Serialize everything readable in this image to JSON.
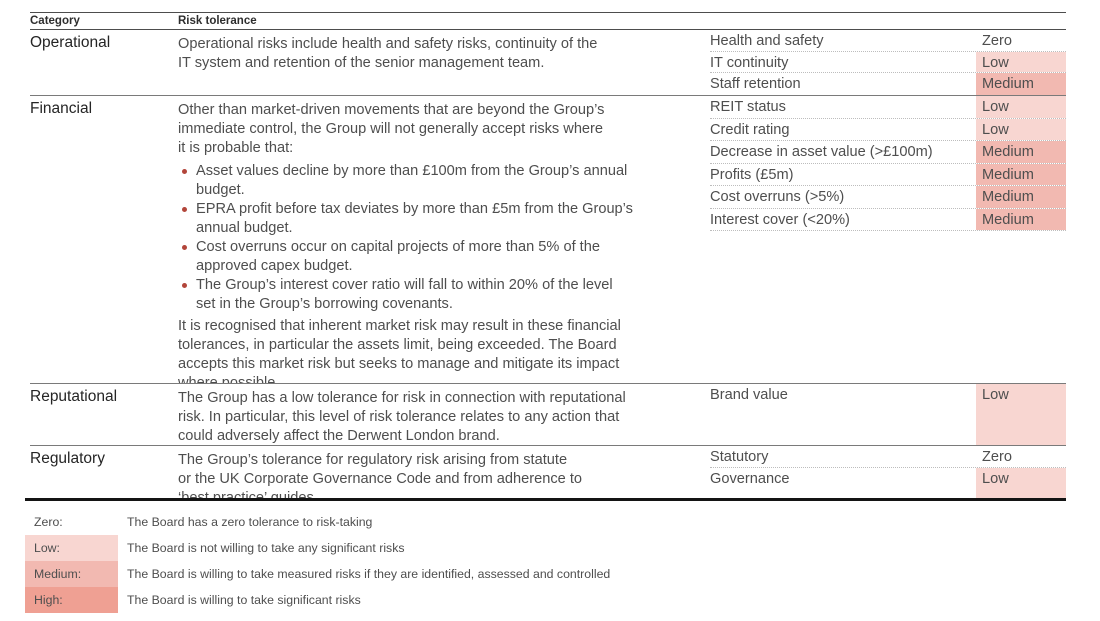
{
  "colors": {
    "low": "#f8d6d1",
    "medium": "#f2b9b1",
    "high": "#efa093",
    "bullet": "#b2453a"
  },
  "table": {
    "headers": {
      "category": "Category",
      "risk_tolerance": "Risk tolerance"
    },
    "sections": [
      {
        "id": "operational",
        "category": "Operational",
        "paragraphs": [
          "Operational risks include health and safety risks, continuity of the\nIT system and retention of the senior management team."
        ],
        "items": [
          {
            "label": "Health and safety",
            "level": "Zero"
          },
          {
            "label": "IT continuity",
            "level": "Low"
          },
          {
            "label": "Staff retention",
            "level": "Medium"
          }
        ]
      },
      {
        "id": "financial",
        "category": "Financial",
        "paragraphs": [
          "Other than market-driven movements that are beyond the Group’s\nimmediate control, the Group will not generally accept risks where\nit is probable that:"
        ],
        "bullets": [
          "Asset values decline by more than £100m from the Group’s annual\nbudget.",
          "EPRA profit before tax deviates by more than £5m from the Group’s\nannual budget.",
          "Cost overruns occur on capital projects of more than 5% of the\napproved capex budget.",
          "The Group’s interest cover ratio will fall to within 20% of the level\nset in the Group’s borrowing covenants."
        ],
        "closing": [
          "It is recognised that inherent market risk may result in these financial\ntolerances, in particular the assets limit, being exceeded. The Board\naccepts this market risk but seeks to manage and mitigate its impact\nwhere possible."
        ],
        "items": [
          {
            "label": "REIT status",
            "level": "Low"
          },
          {
            "label": "Credit rating",
            "level": "Low"
          },
          {
            "label": "Decrease in asset value (>£100m)",
            "level": "Medium"
          },
          {
            "label": "Profits (£5m)",
            "level": "Medium"
          },
          {
            "label": "Cost overruns (>5%)",
            "level": "Medium"
          },
          {
            "label": "Interest cover (<20%)",
            "level": "Medium"
          }
        ]
      },
      {
        "id": "reputational",
        "category": "Reputational",
        "paragraphs": [
          "The Group has a low tolerance for risk in connection with reputational\nrisk. In particular, this level of risk tolerance relates to any action that\ncould adversely affect the Derwent London brand."
        ],
        "items": [
          {
            "label": "Brand value",
            "level": "Low"
          }
        ]
      },
      {
        "id": "regulatory",
        "category": "Regulatory",
        "paragraphs": [
          "The Group’s tolerance for regulatory risk arising from statute\nor the UK Corporate Governance Code and from adherence to\n‘best practice’ guides."
        ],
        "items": [
          {
            "label": "Statutory",
            "level": "Zero"
          },
          {
            "label": "Governance",
            "level": "Low"
          }
        ]
      }
    ]
  },
  "legend": {
    "entries": [
      {
        "label": "Zero:",
        "level": "zero",
        "description": "The Board has a zero tolerance to risk-taking"
      },
      {
        "label": "Low:",
        "level": "low",
        "description": "The Board is not willing to take any significant risks"
      },
      {
        "label": "Medium:",
        "level": "medium",
        "description": "The Board is willing to take measured risks if they are identified, assessed and controlled"
      },
      {
        "label": "High:",
        "level": "high",
        "description": "The Board is willing to take significant risks"
      }
    ]
  }
}
